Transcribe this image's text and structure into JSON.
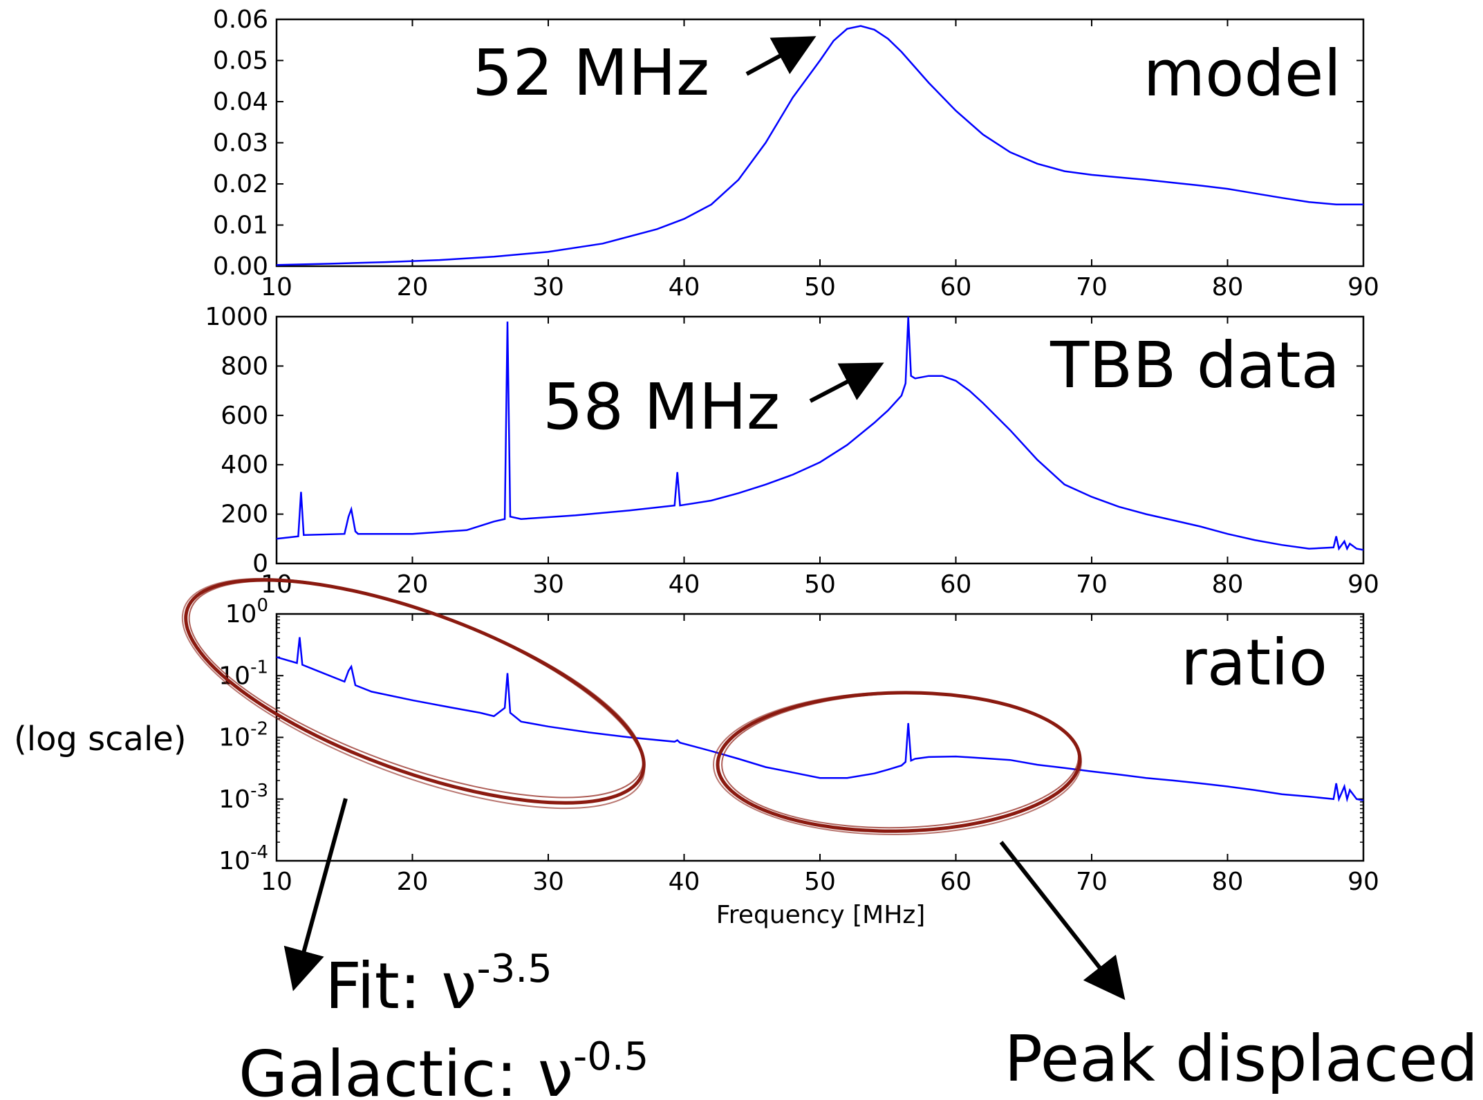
{
  "chart_data": [
    {
      "type": "line",
      "panel_label": "model",
      "annotation": "52 MHz",
      "xlabel": "",
      "xlim": [
        10,
        90
      ],
      "ylim": [
        0.0,
        0.06
      ],
      "xticks": [
        "10",
        "20",
        "30",
        "40",
        "50",
        "60",
        "70",
        "80",
        "90"
      ],
      "yticks": [
        "0.00",
        "0.01",
        "0.02",
        "0.03",
        "0.04",
        "0.05",
        "0.06"
      ],
      "line_color": "#0000ff",
      "series": [
        {
          "x": [
            10,
            14,
            18,
            22,
            26,
            30,
            34,
            38,
            40,
            42,
            44,
            46,
            48,
            50,
            51,
            52,
            53,
            54,
            55,
            56,
            58,
            60,
            62,
            64,
            66,
            68,
            70,
            72,
            74,
            76,
            78,
            80,
            82,
            84,
            86,
            88,
            90
          ],
          "y": [
            0.0003,
            0.0006,
            0.001,
            0.0015,
            0.0023,
            0.0035,
            0.0055,
            0.009,
            0.0115,
            0.015,
            0.021,
            0.03,
            0.041,
            0.05,
            0.0548,
            0.0577,
            0.0584,
            0.0575,
            0.0553,
            0.0521,
            0.0446,
            0.0378,
            0.032,
            0.0277,
            0.0249,
            0.0231,
            0.0222,
            0.0216,
            0.021,
            0.0203,
            0.0196,
            0.0188,
            0.0177,
            0.0166,
            0.0156,
            0.015,
            0.015
          ]
        }
      ]
    },
    {
      "type": "line",
      "panel_label": "TBB data",
      "annotation": "58 MHz",
      "xlabel": "Frequency [MHz]",
      "xlim": [
        10,
        90
      ],
      "ylim": [
        0,
        1000
      ],
      "xticks": [
        "10",
        "20",
        "30",
        "40",
        "50",
        "60",
        "70",
        "80",
        "90"
      ],
      "yticks": [
        "0",
        "200",
        "400",
        "600",
        "800",
        "1000"
      ],
      "line_color": "#0000ff",
      "series": [
        {
          "x": [
            10,
            11.6,
            11.8,
            12,
            15,
            15.3,
            15.5,
            15.8,
            16,
            20,
            24,
            26,
            26.8,
            27,
            27.2,
            28,
            32,
            36,
            39.3,
            39.5,
            39.7,
            42,
            44,
            46,
            48,
            50,
            52,
            54,
            55,
            56,
            56.3,
            56.5,
            56.7,
            57,
            58,
            59,
            60,
            61,
            62,
            64,
            66,
            68,
            70,
            72,
            74,
            76,
            78,
            80,
            82,
            84,
            86,
            87.8,
            88,
            88.2,
            88.6,
            88.8,
            89,
            89.5,
            90
          ],
          "y": [
            100,
            110,
            290,
            115,
            120,
            190,
            220,
            130,
            120,
            120,
            135,
            170,
            180,
            980,
            190,
            180,
            195,
            215,
            235,
            370,
            235,
            255,
            285,
            320,
            360,
            410,
            480,
            570,
            620,
            680,
            730,
            1000,
            760,
            750,
            760,
            760,
            740,
            700,
            650,
            540,
            420,
            320,
            270,
            230,
            200,
            175,
            150,
            120,
            95,
            75,
            60,
            65,
            110,
            60,
            90,
            60,
            80,
            60,
            55
          ]
        }
      ]
    },
    {
      "type": "line",
      "panel_label": "ratio",
      "ylabel_annotation": "(log scale)",
      "xlabel": "Frequency [MHz]",
      "xlim": [
        10,
        90
      ],
      "yscale": "log",
      "ylim": [
        0.0001,
        1
      ],
      "xticks": [
        "10",
        "20",
        "30",
        "40",
        "50",
        "60",
        "70",
        "80",
        "90"
      ],
      "yticks": [
        {
          "base": "10",
          "exp": "0"
        },
        {
          "base": "10",
          "exp": "-1"
        },
        {
          "base": "10",
          "exp": "-2"
        },
        {
          "base": "10",
          "exp": "-3"
        },
        {
          "base": "10",
          "exp": "-4"
        }
      ],
      "line_color": "#0000ff",
      "series": [
        {
          "x": [
            10,
            11.5,
            11.7,
            11.9,
            13,
            15,
            15.3,
            15.5,
            15.8,
            17,
            20,
            23,
            25,
            26,
            26.8,
            27,
            27.2,
            28,
            30,
            33,
            36,
            39.3,
            39.5,
            39.7,
            42,
            44,
            46,
            48,
            50,
            52,
            54,
            55,
            56,
            56.3,
            56.5,
            56.7,
            57,
            58,
            60,
            62,
            64,
            66,
            68,
            70,
            72,
            74,
            76,
            78,
            80,
            82,
            84,
            86,
            87.8,
            88,
            88.2,
            88.6,
            88.8,
            89,
            89.5,
            90
          ],
          "y": [
            0.2,
            0.16,
            0.42,
            0.15,
            0.12,
            0.08,
            0.12,
            0.14,
            0.07,
            0.055,
            0.04,
            0.03,
            0.025,
            0.022,
            0.03,
            0.11,
            0.025,
            0.018,
            0.015,
            0.012,
            0.01,
            0.0085,
            0.009,
            0.0082,
            0.006,
            0.0045,
            0.0033,
            0.0027,
            0.0022,
            0.0022,
            0.0026,
            0.003,
            0.0035,
            0.004,
            0.017,
            0.0042,
            0.0045,
            0.0048,
            0.0049,
            0.0046,
            0.0043,
            0.0036,
            0.0032,
            0.0028,
            0.0025,
            0.0022,
            0.002,
            0.0018,
            0.0016,
            0.0014,
            0.0012,
            0.0011,
            0.001,
            0.0018,
            0.001,
            0.0016,
            0.001,
            0.0014,
            0.001,
            0.00095
          ]
        }
      ]
    }
  ],
  "annotations": {
    "fit_prefix": "Fit: ν",
    "fit_exp": "-3.5",
    "galactic_prefix": "Galactic: ν",
    "galactic_exp": "-0.5",
    "peak_displaced": "Peak displaced"
  },
  "colors": {
    "line": "#0000ff",
    "ellipse": "#8b1a10",
    "arrow": "#000000"
  }
}
